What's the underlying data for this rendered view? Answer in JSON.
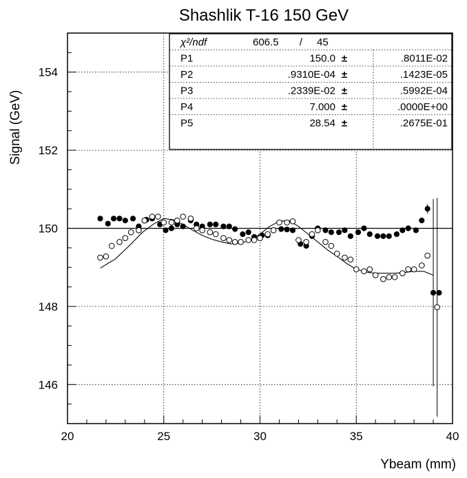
{
  "chart_data": {
    "type": "scatter",
    "title": "Shashlik T-16  150 GeV",
    "xlabel": "Ybeam (mm)",
    "ylabel": "Signal (GeV)",
    "xlim": [
      20,
      40
    ],
    "ylim": [
      145,
      155
    ],
    "x_ticks": [
      "20",
      "25",
      "30",
      "35",
      "40"
    ],
    "y_ticks": [
      "146",
      "148",
      "150",
      "152",
      "154"
    ],
    "x_tick_values": [
      20,
      25,
      30,
      35,
      40
    ],
    "y_tick_values": [
      146,
      148,
      150,
      152,
      154
    ],
    "grid": "dotted",
    "reference_line": 150,
    "stats_box": {
      "position": "top-center",
      "rows": [
        {
          "label": "χ²/ndf",
          "value": "606.5",
          "sep": "/",
          "error": "45"
        },
        {
          "label": "P1",
          "value": "150.0",
          "sep": "±",
          "error": ".8011E-02"
        },
        {
          "label": "P2",
          "value": ".9310E-04",
          "sep": "±",
          "error": ".1423E-05"
        },
        {
          "label": "P3",
          "value": ".2339E-02",
          "sep": "±",
          "error": ".5992E-04"
        },
        {
          "label": "P4",
          "value": "7.000",
          "sep": "±",
          "error": ".0000E+00"
        },
        {
          "label": "P5",
          "value": "28.54",
          "sep": "±",
          "error": ".2675E-01"
        }
      ]
    },
    "series": [
      {
        "marker": "filled-circle",
        "x": [
          21.7,
          22.1,
          22.4,
          22.7,
          23.0,
          23.4,
          23.7,
          24.1,
          24.4,
          24.8,
          25.1,
          25.4,
          25.7,
          26.0,
          26.4,
          26.7,
          27.0,
          27.4,
          27.7,
          28.1,
          28.4,
          28.7,
          29.1,
          29.4,
          29.7,
          30.1,
          30.4,
          30.7,
          31.1,
          31.4,
          31.7,
          32.1,
          32.4,
          32.7,
          33.0,
          33.4,
          33.7,
          34.1,
          34.4,
          34.7,
          35.1,
          35.4,
          35.7,
          36.1,
          36.4,
          36.7,
          37.1,
          37.4,
          37.7,
          38.1,
          38.4,
          38.7,
          39.0,
          39.3
        ],
        "y": [
          150.25,
          150.12,
          150.25,
          150.25,
          150.2,
          150.25,
          150.05,
          150.22,
          150.25,
          150.1,
          149.95,
          150.0,
          150.1,
          150.05,
          150.2,
          150.1,
          150.05,
          150.1,
          150.1,
          150.05,
          150.05,
          149.98,
          149.85,
          149.9,
          149.78,
          149.82,
          149.82,
          149.95,
          149.98,
          149.97,
          149.95,
          149.6,
          149.55,
          149.8,
          150.0,
          149.95,
          149.9,
          149.9,
          149.95,
          149.8,
          149.9,
          150.0,
          149.85,
          149.8,
          149.8,
          149.8,
          149.85,
          149.95,
          150.0,
          149.95,
          150.2,
          150.5,
          148.35,
          148.35
        ],
        "errors": [
          0,
          0,
          0,
          0,
          0,
          0,
          0,
          0,
          0,
          0,
          0,
          0,
          0,
          0,
          0,
          0,
          0,
          0,
          0,
          0,
          0,
          0,
          0,
          0,
          0,
          0,
          0,
          0,
          0,
          0,
          0,
          0,
          0,
          0,
          0,
          0,
          0,
          0,
          0,
          0,
          0,
          0,
          0,
          0,
          0,
          0,
          0,
          0,
          0,
          0,
          0,
          0.12,
          2.4,
          0
        ]
      },
      {
        "marker": "open-circle",
        "x": [
          21.7,
          22.0,
          22.3,
          22.7,
          23.0,
          23.3,
          23.7,
          24.0,
          24.4,
          24.7,
          25.0,
          25.4,
          25.7,
          26.0,
          26.4,
          26.7,
          27.0,
          27.4,
          27.7,
          28.1,
          28.4,
          28.7,
          29.0,
          29.4,
          29.7,
          30.0,
          30.4,
          30.7,
          31.0,
          31.4,
          31.7,
          32.0,
          32.4,
          32.7,
          33.0,
          33.4,
          33.7,
          34.0,
          34.4,
          34.7,
          35.0,
          35.4,
          35.7,
          36.0,
          36.4,
          36.7,
          37.0,
          37.4,
          37.7,
          38.0,
          38.4,
          38.7,
          39.2
        ],
        "y": [
          149.25,
          149.28,
          149.55,
          149.65,
          149.75,
          149.9,
          149.95,
          150.2,
          150.3,
          150.3,
          150.15,
          150.15,
          150.2,
          150.3,
          150.25,
          150.0,
          149.95,
          149.9,
          149.85,
          149.75,
          149.7,
          149.65,
          149.65,
          149.7,
          149.7,
          149.75,
          149.85,
          149.95,
          150.15,
          150.15,
          150.18,
          149.7,
          149.65,
          149.85,
          149.95,
          149.65,
          149.55,
          149.35,
          149.25,
          149.2,
          148.95,
          148.9,
          148.95,
          148.8,
          148.7,
          148.75,
          148.75,
          148.85,
          148.95,
          148.95,
          149.05,
          149.3,
          147.98
        ],
        "errors": [
          0,
          0,
          0,
          0,
          0,
          0,
          0,
          0,
          0,
          0,
          0,
          0,
          0,
          0,
          0,
          0,
          0,
          0,
          0,
          0,
          0,
          0,
          0,
          0,
          0,
          0,
          0,
          0,
          0,
          0,
          0,
          0,
          0,
          0,
          0,
          0,
          0,
          0,
          0,
          0,
          0,
          0,
          0,
          0,
          0,
          0,
          0,
          0,
          0,
          0,
          0,
          0,
          2.8
        ]
      },
      {
        "marker": "line",
        "x": [
          21.7,
          22.5,
          23.2,
          23.9,
          24.5,
          25.0,
          25.5,
          26.0,
          26.5,
          27.0,
          27.5,
          28.0,
          28.5,
          29.0,
          29.5,
          30.0,
          30.5,
          31.0,
          31.5,
          32.0,
          32.5,
          33.0,
          33.5,
          34.0,
          34.5,
          35.0,
          35.5,
          36.0,
          36.5,
          37.0,
          37.5,
          38.0,
          38.5,
          39.0
        ],
        "y": [
          148.98,
          149.22,
          149.55,
          149.9,
          150.12,
          150.25,
          150.22,
          150.1,
          149.95,
          149.82,
          149.72,
          149.65,
          149.6,
          149.62,
          149.7,
          149.85,
          150.05,
          150.18,
          150.2,
          150.05,
          149.85,
          149.65,
          149.45,
          149.28,
          149.1,
          148.95,
          148.88,
          148.85,
          148.85,
          148.85,
          148.87,
          148.9,
          148.9,
          148.8
        ]
      }
    ]
  }
}
